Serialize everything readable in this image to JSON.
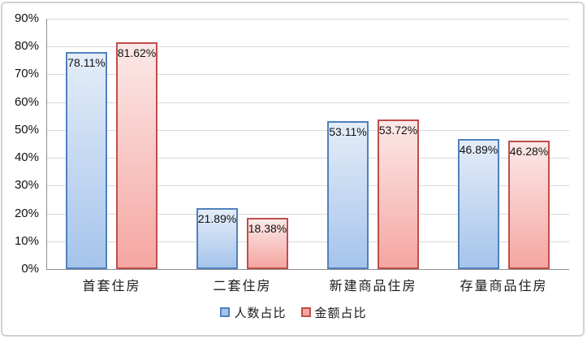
{
  "chart_data": {
    "type": "bar",
    "title": "",
    "xlabel": "",
    "ylabel": "",
    "categories": [
      "首套住房",
      "二套住房",
      "新建商品住房",
      "存量商品住房"
    ],
    "series": [
      {
        "name": "人数占比",
        "values": [
          78.11,
          21.89,
          53.11,
          46.89
        ],
        "labels": [
          "78.11%",
          "21.89%",
          "53.11%",
          "46.89%"
        ],
        "fill_top": "#e4edf8",
        "fill_bottom": "#a6c4eb",
        "border": "#4f81bd"
      },
      {
        "name": "金额占比",
        "values": [
          81.62,
          18.38,
          53.72,
          46.28
        ],
        "labels": [
          "81.62%",
          "18.38%",
          "53.72%",
          "46.28%"
        ],
        "fill_top": "#fbe9e8",
        "fill_bottom": "#f5a6a1",
        "border": "#bf4e4b"
      }
    ],
    "ylim": [
      0,
      90
    ],
    "ytick_step": 10,
    "ytick_labels": [
      "0%",
      "10%",
      "20%",
      "30%",
      "40%",
      "50%",
      "60%",
      "70%",
      "80%",
      "90%"
    ],
    "grid": true,
    "legend_position": "bottom",
    "data_label_position": "inside-end"
  },
  "colors": {
    "gridline": "#d9d9d9",
    "axis": "#8f8f8f",
    "text": "#1a1a1a",
    "frame_border": "#d2d2d2",
    "background": "#ffffff"
  }
}
